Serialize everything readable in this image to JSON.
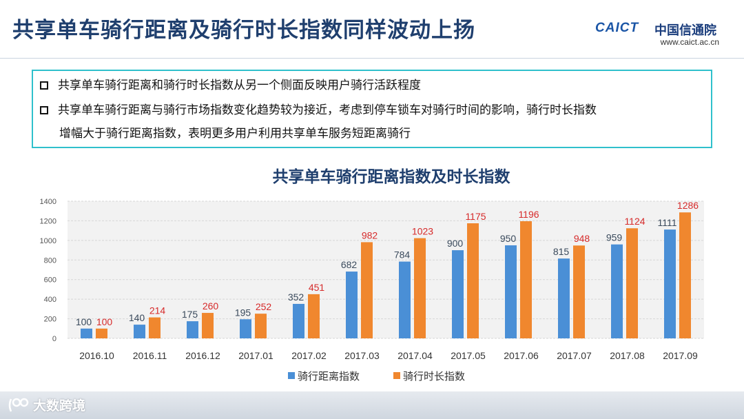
{
  "slide": {
    "title": "共享单车骑行距离及骑行时长指数同样波动上扬"
  },
  "logo": {
    "brand": "CAICT",
    "name_cn": "中国信通院",
    "url": "www.caict.ac.cn"
  },
  "bullets": [
    {
      "text": "共享单车骑行距离和骑行时长指数从另一个侧面反映用户骑行活跃程度"
    },
    {
      "text": "共享单车骑行距离与骑行市场指数变化趋势较为接近，考虑到停车锁车对骑行时间的影响，骑行时长指数",
      "cont": "增幅大于骑行距离指数，表明更多用户利用共享单车服务短距离骑行"
    }
  ],
  "watermark": {
    "text": "大数跨境"
  },
  "chart_data": {
    "type": "bar",
    "title": "共享单车骑行距离指数及时长指数",
    "categories": [
      "2016.10",
      "2016.11",
      "2016.12",
      "2017.01",
      "2017.02",
      "2017.03",
      "2017.04",
      "2017.05",
      "2017.06",
      "2017.07",
      "2017.08",
      "2017.09"
    ],
    "series": [
      {
        "name": "骑行距离指数",
        "color": "#4a8fd6",
        "label_color": "#3a4a5c",
        "values": [
          100,
          140,
          175,
          195,
          352,
          682,
          784,
          900,
          950,
          815,
          959,
          1111
        ]
      },
      {
        "name": "骑行时长指数",
        "color": "#f0872e",
        "label_color": "#d62a2a",
        "values": [
          100,
          214,
          260,
          252,
          451,
          982,
          1023,
          1175,
          1196,
          948,
          1124,
          1286
        ]
      }
    ],
    "ylim": [
      0,
      1400
    ],
    "yticks": [
      "0",
      "200",
      "400",
      "600",
      "800",
      "1000",
      "1200",
      "1400"
    ],
    "grid": true,
    "legend": "bottom"
  }
}
